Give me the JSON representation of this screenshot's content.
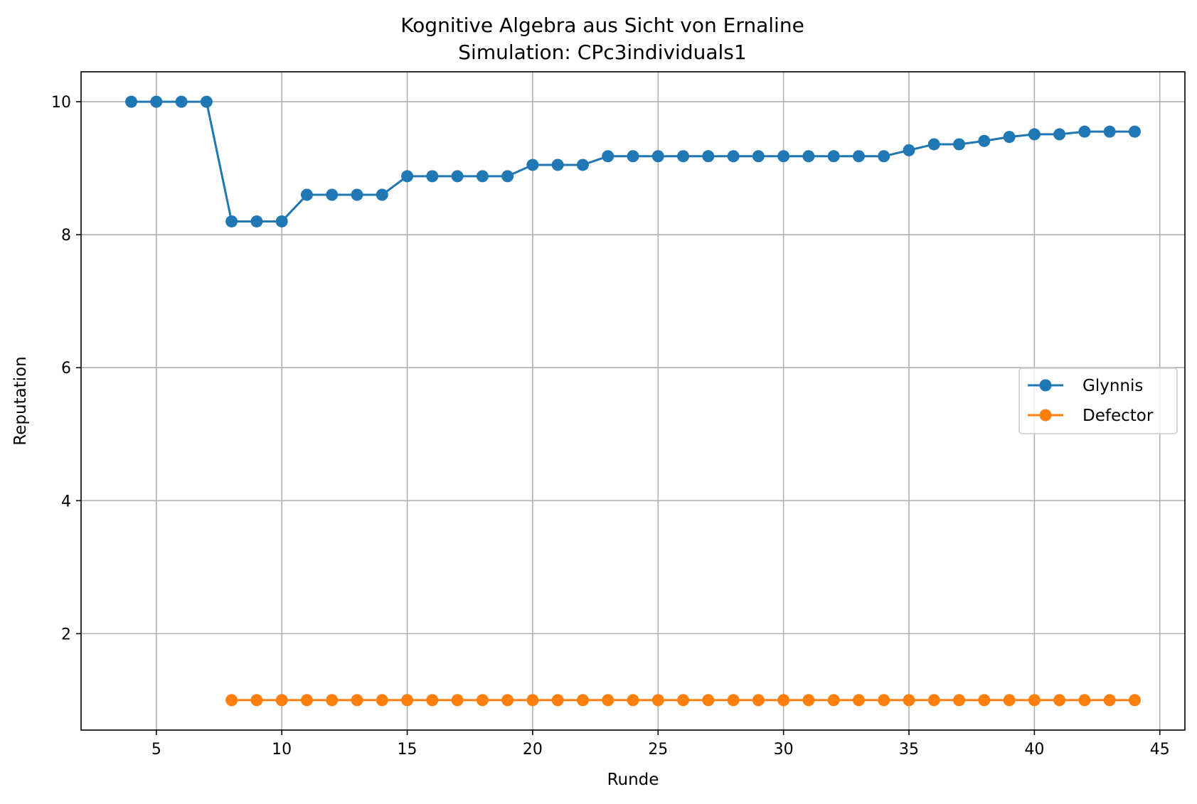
{
  "chart_data": {
    "type": "line",
    "title": "Kognitive Algebra aus Sicht von Ernaline",
    "subtitle": "Simulation: CPc3individuals1",
    "xlabel": "Runde",
    "ylabel": "Reputation",
    "xlim": [
      2,
      46
    ],
    "ylim": [
      0.55,
      10.45
    ],
    "xticks": [
      5,
      10,
      15,
      20,
      25,
      30,
      35,
      40,
      45
    ],
    "yticks": [
      2,
      4,
      6,
      8,
      10
    ],
    "grid": true,
    "legend_position": "center-right",
    "series": [
      {
        "name": "Glynnis",
        "color": "#1f77b4",
        "x": [
          4,
          5,
          6,
          7,
          8,
          9,
          10,
          11,
          12,
          13,
          14,
          15,
          16,
          17,
          18,
          19,
          20,
          21,
          22,
          23,
          24,
          25,
          26,
          27,
          28,
          29,
          30,
          31,
          32,
          33,
          34,
          35,
          36,
          37,
          38,
          39,
          40,
          41,
          42,
          43,
          44
        ],
        "y": [
          10,
          10,
          10,
          10,
          8.2,
          8.2,
          8.2,
          8.6,
          8.6,
          8.6,
          8.6,
          8.88,
          8.88,
          8.88,
          8.88,
          8.88,
          9.05,
          9.05,
          9.05,
          9.18,
          9.18,
          9.18,
          9.18,
          9.18,
          9.18,
          9.18,
          9.18,
          9.18,
          9.18,
          9.18,
          9.18,
          9.27,
          9.36,
          9.36,
          9.41,
          9.47,
          9.51,
          9.51,
          9.55,
          9.55,
          9.55
        ]
      },
      {
        "name": "Defector",
        "color": "#ff7f0e",
        "x": [
          8,
          9,
          10,
          11,
          12,
          13,
          14,
          15,
          16,
          17,
          18,
          19,
          20,
          21,
          22,
          23,
          24,
          25,
          26,
          27,
          28,
          29,
          30,
          31,
          32,
          33,
          34,
          35,
          36,
          37,
          38,
          39,
          40,
          41,
          42,
          43,
          44
        ],
        "y": [
          1,
          1,
          1,
          1,
          1,
          1,
          1,
          1,
          1,
          1,
          1,
          1,
          1,
          1,
          1,
          1,
          1,
          1,
          1,
          1,
          1,
          1,
          1,
          1,
          1,
          1,
          1,
          1,
          1,
          1,
          1,
          1,
          1,
          1,
          1,
          1,
          1
        ]
      }
    ]
  }
}
